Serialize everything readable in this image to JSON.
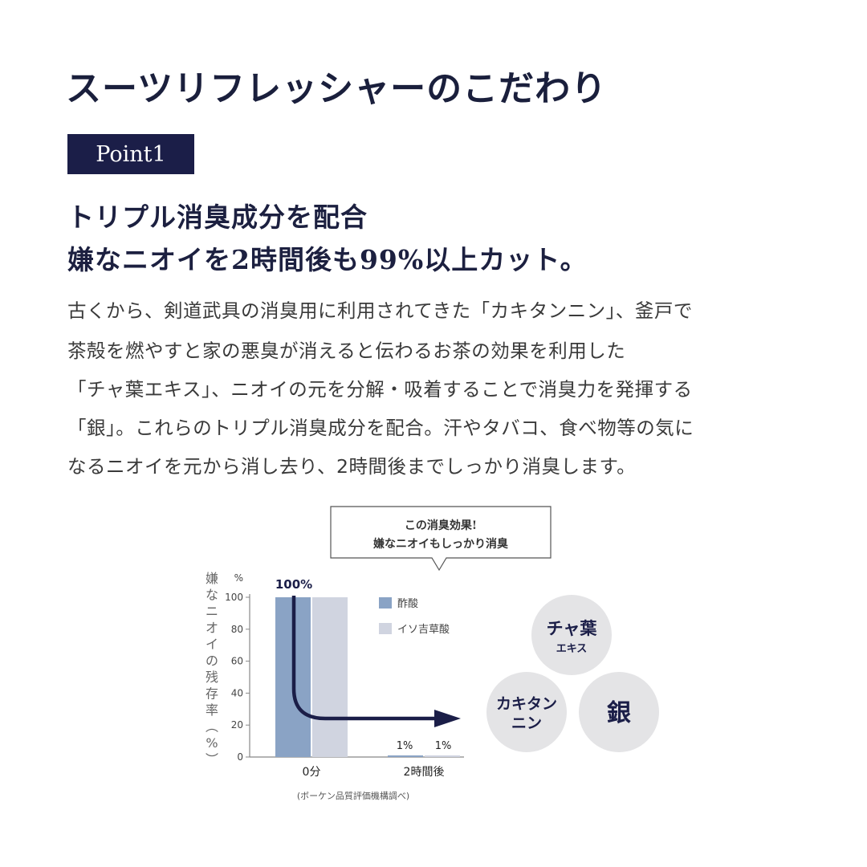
{
  "page": {
    "title": "スーツリフレッシャーのこだわり",
    "badge": "Point1",
    "heading_lines": [
      "トリプル消臭成分を配合",
      "嫌なニオイを2時間後も99%以上カット。"
    ],
    "body_lines": [
      "古くから、剣道武具の消臭用に利用されてきた「カキタンニン」、釜戸で",
      "茶殻を燃やすと家の悪臭が消えると伝わるお茶の効果を利用した",
      "「チャ葉エキス」、ニオイの元を分解・吸着することで消臭力を発揮する",
      "「銀」。これらのトリプル消臭成分を配合。汗やタバコ、食べ物等の気に",
      "なるニオイを元から消し去り、2時間後までしっかり消臭します。"
    ]
  },
  "callout": {
    "line1": "この消臭効果!",
    "line2": "嫌なニオイもしっかり消臭"
  },
  "ingredients": {
    "cha": {
      "line1": "チャ葉",
      "line2": "エキス"
    },
    "kaki": {
      "line1": "カキタン",
      "line2": "ニン"
    },
    "gin": "銀"
  },
  "chart_data": {
    "type": "bar",
    "categories": [
      "0分",
      "2時間後"
    ],
    "series": [
      {
        "name": "酢酸",
        "values": [
          100,
          1
        ],
        "color": "#8aa3c5"
      },
      {
        "name": "イソ吉草酸",
        "values": [
          100,
          1
        ],
        "color": "#d0d4e0"
      }
    ],
    "value_labels": [
      "100%",
      "1%",
      "1%"
    ],
    "ylabel": "嫌なニオイの残存率(%)",
    "y_unit": "%",
    "ylim": [
      0,
      100
    ],
    "yticks": [
      0,
      20,
      40,
      60,
      80,
      100
    ],
    "source": "(ボーケン品質評価機構調べ)",
    "legend_position": "top-right",
    "arrow_color": "#1b1e48",
    "grid": false
  }
}
